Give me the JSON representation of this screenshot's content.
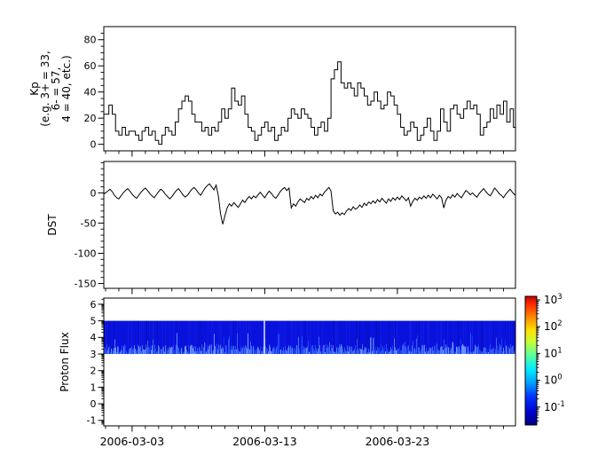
{
  "figure": {
    "background": "#ffffff",
    "axis_color": "#000000",
    "series_color": "#000000"
  },
  "x_axis": {
    "start_date": "2006-03-01",
    "end_date": "2006-04-01",
    "major_ticks": [
      {
        "day": 2,
        "label": "2006-03-03"
      },
      {
        "day": 12,
        "label": "2006-03-13"
      },
      {
        "day": 22,
        "label": "2006-03-23"
      }
    ],
    "minor_tick_interval_days": 1
  },
  "chart_data": [
    {
      "id": "kp",
      "type": "line",
      "style": "step",
      "ylabel_lines": [
        "Kp",
        "(e.g. 3+ = 33,",
        "6- = 57,",
        "4 = 40, etc.)"
      ],
      "ylim": [
        -5,
        90
      ],
      "yticks": [
        0,
        20,
        40,
        60,
        80
      ],
      "y_minor_step": 5,
      "sample_interval_hours": 6,
      "values": [
        23,
        30,
        23,
        10,
        7,
        13,
        7,
        10,
        10,
        7,
        3,
        10,
        13,
        7,
        10,
        3,
        0,
        7,
        13,
        10,
        7,
        17,
        27,
        33,
        37,
        33,
        23,
        17,
        17,
        10,
        13,
        7,
        13,
        10,
        17,
        27,
        20,
        27,
        43,
        33,
        30,
        37,
        23,
        13,
        10,
        3,
        7,
        13,
        17,
        10,
        13,
        3,
        7,
        13,
        10,
        20,
        27,
        23,
        20,
        27,
        23,
        20,
        13,
        7,
        13,
        17,
        10,
        20,
        50,
        57,
        63,
        47,
        43,
        47,
        43,
        37,
        47,
        43,
        37,
        30,
        33,
        40,
        33,
        27,
        30,
        40,
        37,
        30,
        23,
        13,
        7,
        10,
        17,
        13,
        3,
        7,
        13,
        20,
        10,
        3,
        10,
        27,
        17,
        10,
        27,
        30,
        23,
        20,
        27,
        33,
        27,
        30,
        23,
        7,
        13,
        17,
        27,
        20,
        30,
        23,
        33,
        17,
        27,
        13
      ]
    },
    {
      "id": "dst",
      "type": "line",
      "style": "linear",
      "ylabel_lines": [
        "DST"
      ],
      "ylim": [
        -158,
        52
      ],
      "yticks": [
        0,
        -50,
        -100,
        -150
      ],
      "y_minor_step": 10,
      "sample_interval_hours": 4,
      "values": [
        -2,
        3,
        6,
        2,
        -4,
        -8,
        -10,
        -5,
        0,
        4,
        7,
        3,
        -2,
        -6,
        -9,
        -4,
        1,
        5,
        8,
        4,
        -1,
        -5,
        -8,
        -3,
        2,
        6,
        3,
        -2,
        -6,
        -10,
        -6,
        -1,
        4,
        7,
        2,
        -3,
        -7,
        -4,
        1,
        6,
        9,
        5,
        0,
        -4,
        2,
        8,
        12,
        15,
        10,
        5,
        13,
        -5,
        -35,
        -52,
        -38,
        -25,
        -18,
        -22,
        -16,
        -20,
        -24,
        -18,
        -12,
        -16,
        -10,
        -6,
        -10,
        -5,
        -8,
        -3,
        1,
        -4,
        -8,
        -2,
        3,
        -1,
        -6,
        -9,
        -4,
        2,
        6,
        9,
        4,
        8,
        -25,
        -18,
        -22,
        -15,
        -10,
        -13,
        -16,
        -9,
        -12,
        -6,
        -10,
        -4,
        -8,
        -2,
        -5,
        1,
        5,
        9,
        3,
        -30,
        -35,
        -32,
        -37,
        -33,
        -36,
        -30,
        -26,
        -29,
        -23,
        -27,
        -25,
        -20,
        -24,
        -17,
        -21,
        -15,
        -18,
        -13,
        -17,
        -11,
        -15,
        -9,
        -13,
        -17,
        -10,
        -14,
        -8,
        -12,
        -7,
        -11,
        -5,
        -9,
        -13,
        -8,
        -22,
        -14,
        -9,
        -12,
        -7,
        -10,
        -5,
        -9,
        -4,
        -8,
        -2,
        -6,
        -10,
        -4,
        -8,
        -25,
        -12,
        -6,
        -9,
        -3,
        -7,
        -1,
        -5,
        -8,
        -2,
        4,
        1,
        -3,
        0,
        -4,
        -7,
        -1,
        3,
        7,
        2,
        -2,
        -5,
        1,
        8,
        4,
        -1,
        -4,
        -8,
        -2,
        2,
        6,
        1,
        -3
      ]
    },
    {
      "id": "proton_flux",
      "type": "heatmap",
      "ylabel_lines": [
        "Proton Flux"
      ],
      "ylim": [
        -1.33,
        6.37
      ],
      "yticks": [
        -1,
        0,
        1,
        2,
        3,
        4,
        5,
        6
      ],
      "y_minor": "log-decades",
      "band": {
        "y_min": 3,
        "y_max": 5,
        "base_color": "#0912dd",
        "dark_streak_color": "#000a8c",
        "light_overlay_color": "#2b45ff",
        "bright_streak_colors": [
          "#2050ff",
          "#3a6eff",
          "#5c8cff",
          "#7fa8ff"
        ],
        "highlight_streak_color": "#cfe0ff",
        "highlight_streak_day": 11.9,
        "seed": 7
      },
      "colorbar": {
        "scale": "log",
        "colormap": "jet",
        "base": "10",
        "tick_exponents": [
          "3",
          "2",
          "1",
          "0",
          "-1"
        ],
        "gradient_stops": [
          [
            "0",
            "#c80000"
          ],
          [
            "0.06",
            "#ff2a00"
          ],
          [
            "0.17",
            "#ff9000"
          ],
          [
            "0.26",
            "#ffe000"
          ],
          [
            "0.36",
            "#c4ff3a"
          ],
          [
            "0.46",
            "#58ff9f"
          ],
          [
            "0.57",
            "#00eaff"
          ],
          [
            "0.67",
            "#00a2ff"
          ],
          [
            "0.78",
            "#0034ff"
          ],
          [
            "0.90",
            "#0000cf"
          ],
          [
            "1",
            "#000086"
          ]
        ]
      }
    }
  ]
}
